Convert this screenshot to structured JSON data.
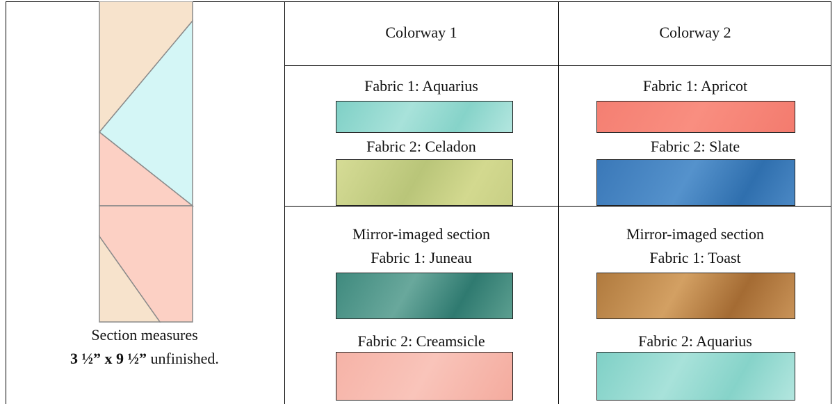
{
  "section_note": {
    "line1": "Section measures",
    "size": "3 ½” x 9 ½”",
    "suffix": "unfinished."
  },
  "table": {
    "header": [
      "Colorway 1",
      "Colorway 2"
    ],
    "rows": [
      [
        {
          "fabrics": [
            "Fabric 1: Aquarius",
            "Fabric 2: Celadon"
          ]
        },
        {
          "fabrics": [
            "Fabric 1: Apricot",
            "Fabric 2: Slate"
          ]
        }
      ],
      [
        {
          "heading": "Mirror-imaged section",
          "fabrics": [
            "Fabric 1: Juneau",
            "Fabric 2:  Creamsicle"
          ]
        },
        {
          "heading": "Mirror-imaged section",
          "fabrics": [
            "Fabric 1: Toast",
            "Fabric 2: Aquarius"
          ]
        }
      ]
    ]
  }
}
